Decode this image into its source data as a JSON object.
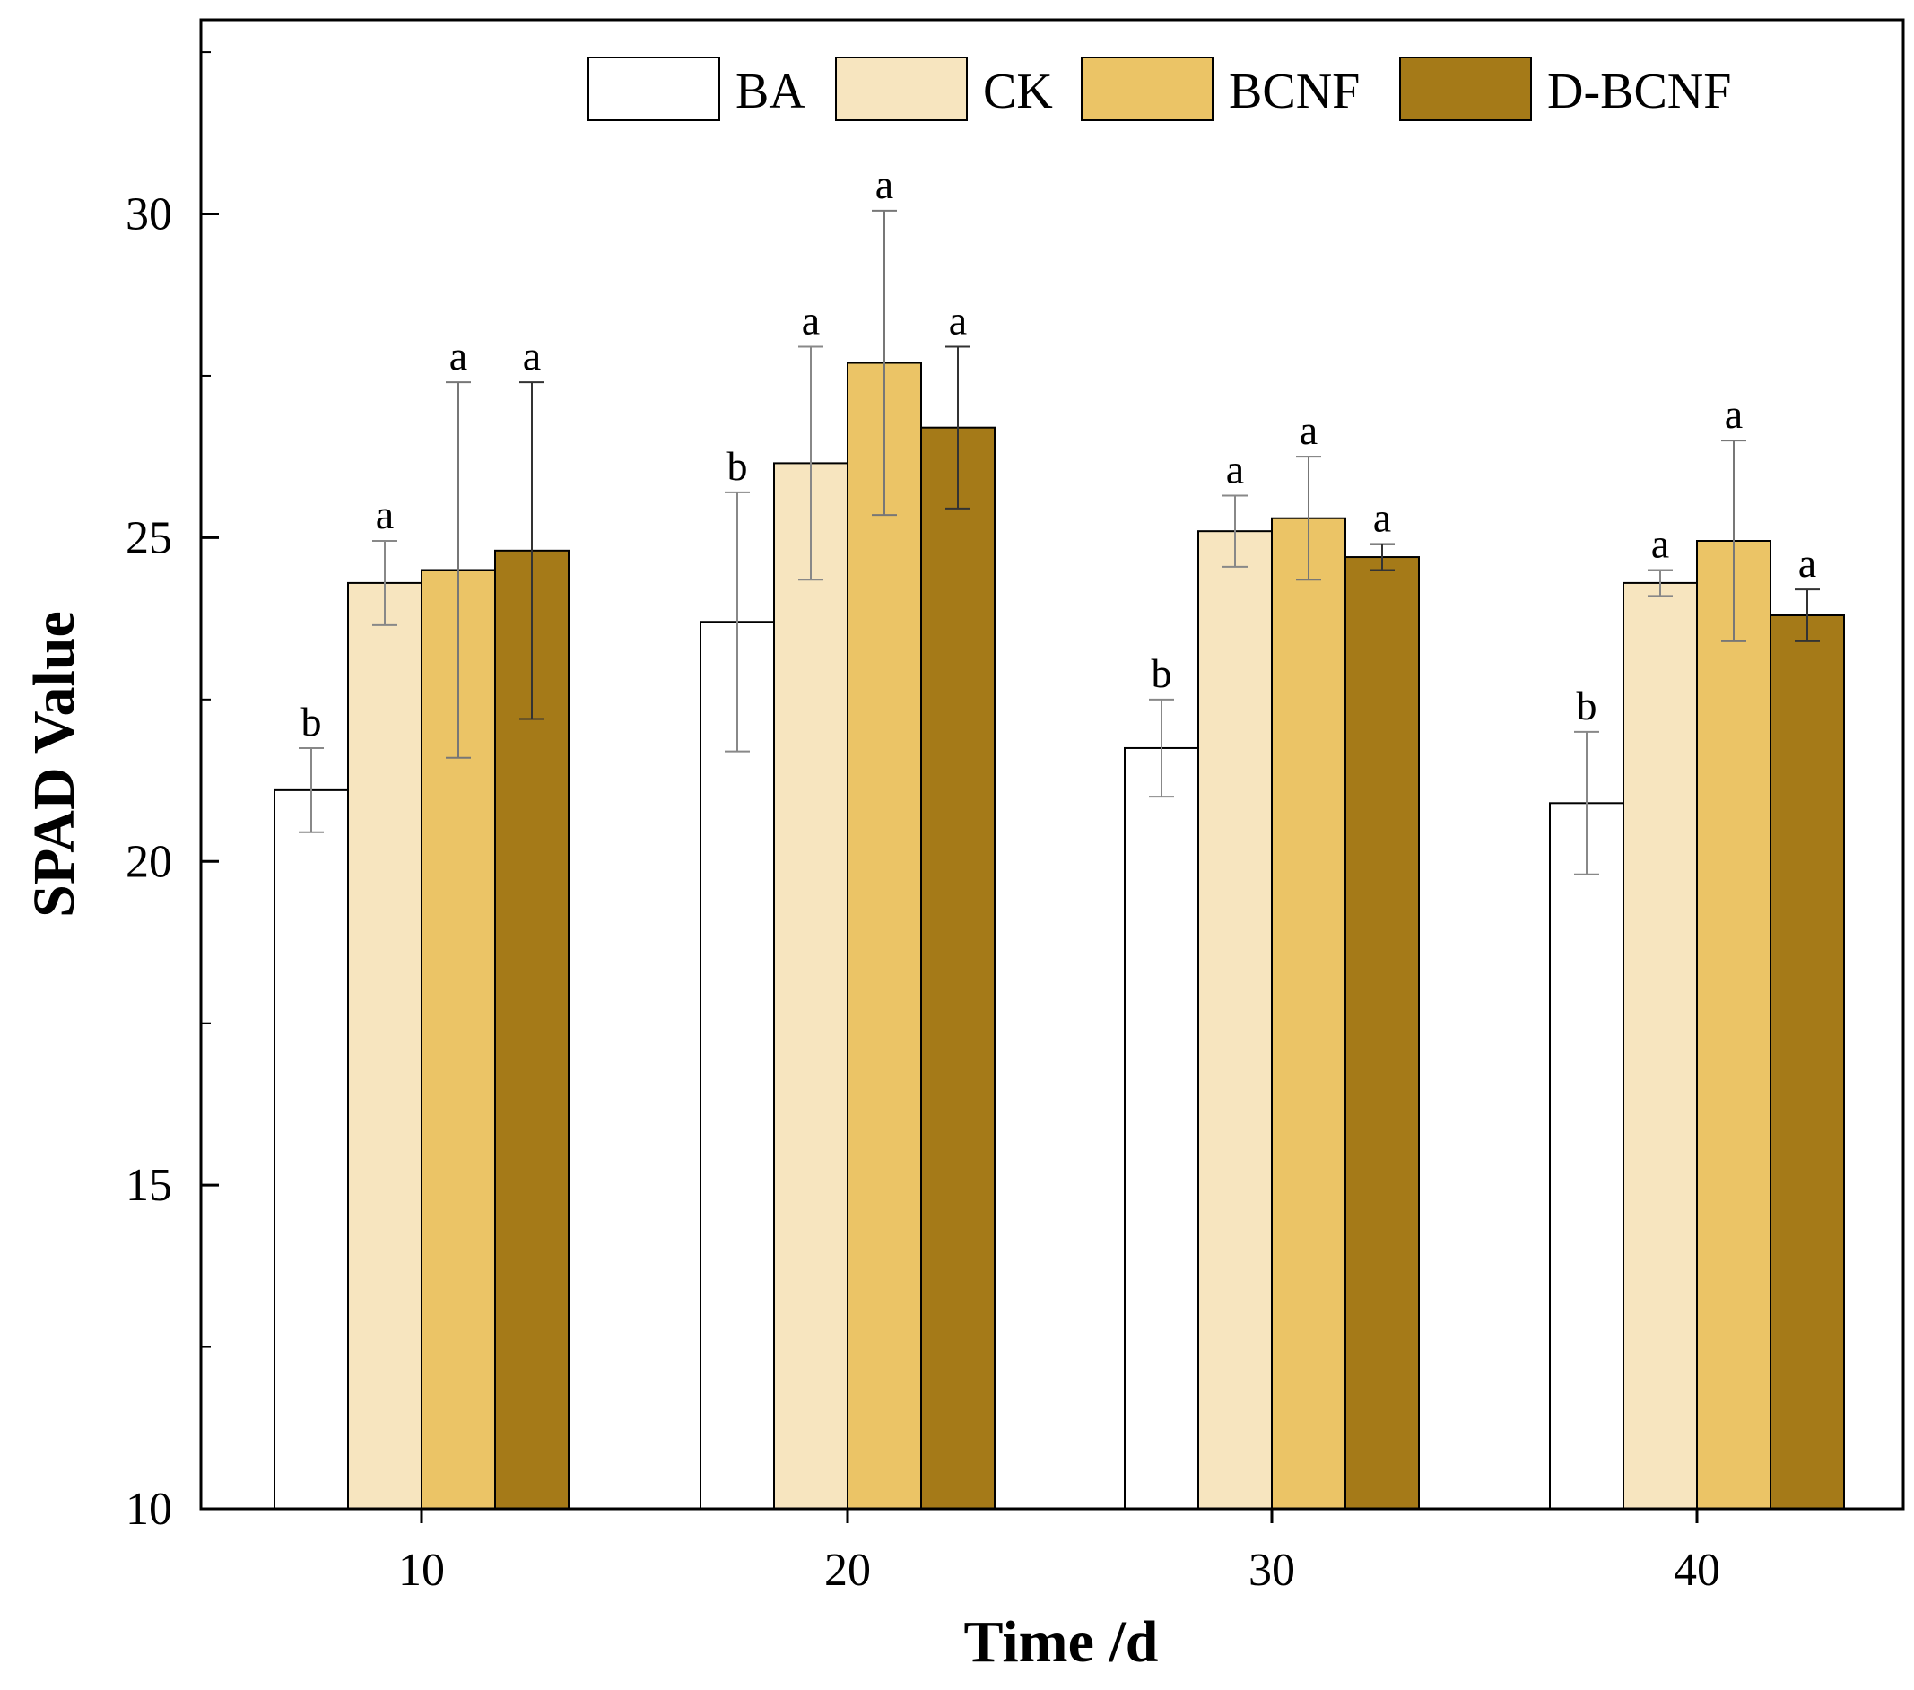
{
  "chart_data": {
    "type": "bar",
    "title": "",
    "xlabel": "Time /d",
    "ylabel": "SPAD Value",
    "categories": [
      "10",
      "20",
      "30",
      "40"
    ],
    "ylim": [
      10,
      33
    ],
    "yticks": [
      10,
      15,
      20,
      25,
      30
    ],
    "grid": false,
    "legend_position": "top",
    "series": [
      {
        "name": "BA",
        "color": "#ffffff",
        "errorbar_color": "#888888",
        "values": [
          21.1,
          23.7,
          21.75,
          20.9
        ],
        "errors": [
          0.65,
          2.0,
          0.75,
          1.1
        ],
        "significance": [
          "b",
          "b",
          "b",
          "b"
        ]
      },
      {
        "name": "CK",
        "color": "#f7e5bf",
        "errorbar_color": "#888888",
        "values": [
          24.3,
          26.15,
          25.1,
          24.3
        ],
        "errors": [
          0.65,
          1.8,
          0.55,
          0.2
        ],
        "significance": [
          "a",
          "a",
          "a",
          "a"
        ]
      },
      {
        "name": "BCNF",
        "color": "#ebc466",
        "errorbar_color": "#777777",
        "values": [
          24.5,
          27.7,
          25.3,
          24.95
        ],
        "errors": [
          2.9,
          2.35,
          0.95,
          1.55
        ],
        "significance": [
          "a",
          "a",
          "a",
          "a"
        ]
      },
      {
        "name": "D-BCNF",
        "color": "#a57a18",
        "errorbar_color": "#333333",
        "values": [
          24.8,
          26.7,
          24.7,
          23.8
        ],
        "errors": [
          2.6,
          1.25,
          0.2,
          0.4
        ],
        "significance": [
          "a",
          "a",
          "a",
          "a"
        ]
      }
    ]
  }
}
